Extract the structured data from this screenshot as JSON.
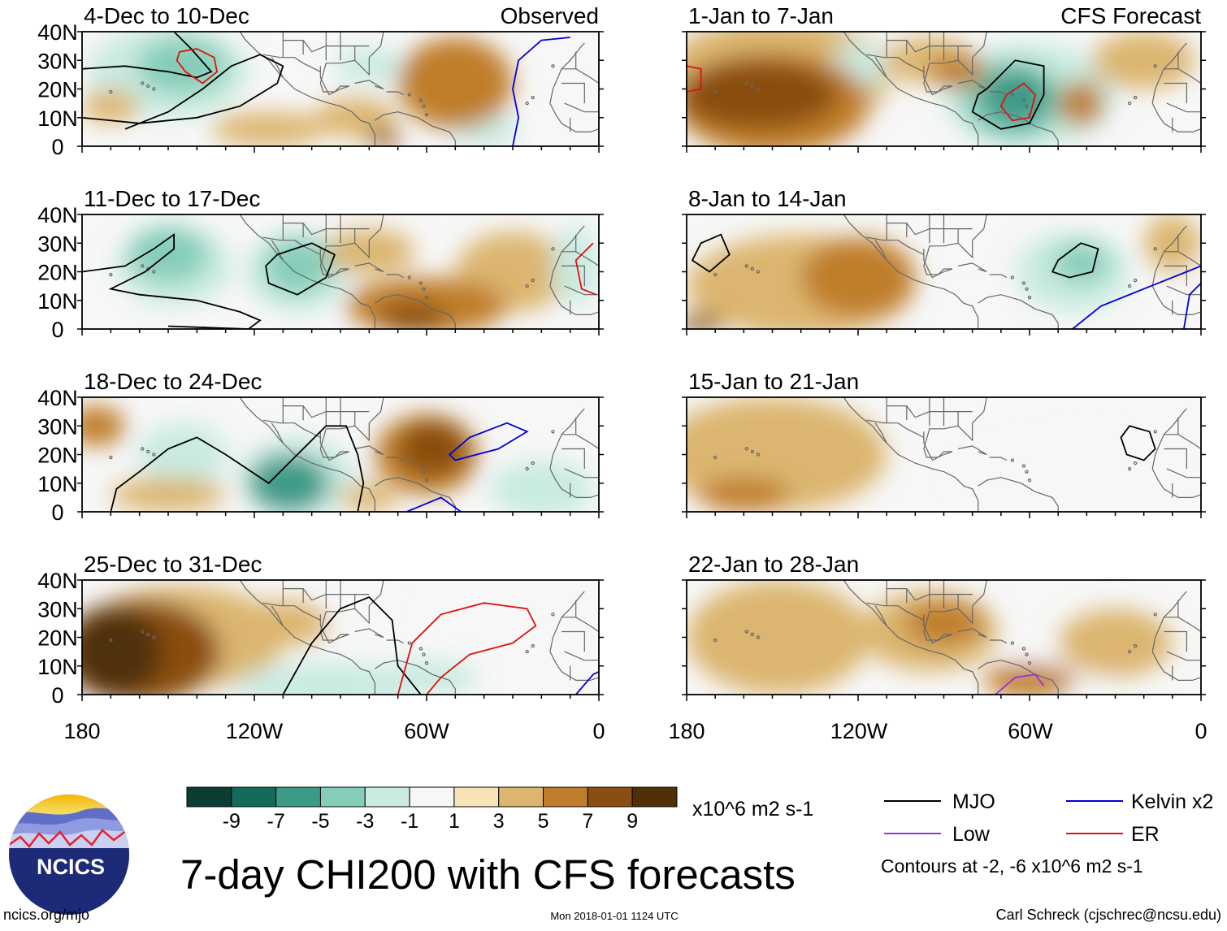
{
  "chart_data": {
    "type": "heatmap",
    "title": "7-day CHI200 with CFS forecasts",
    "variable": "CHI200",
    "units": "x10^6 m2 s-1",
    "x_ticks": [
      "180",
      "120W",
      "60W",
      "0"
    ],
    "y_ticks": [
      "40N",
      "30N",
      "20N",
      "10N",
      "0"
    ],
    "lon_range": [
      -180,
      0
    ],
    "lat_range": [
      0,
      40
    ],
    "colorbar": {
      "tick_labels": [
        "-9",
        "-7",
        "-5",
        "-3",
        "-1",
        "1",
        "3",
        "5",
        "7",
        "9"
      ],
      "colors": [
        "#0b3d33",
        "#136b5c",
        "#3c9a88",
        "#86cdb9",
        "#c9ebe1",
        "#f7f7f7",
        "#f6e3b6",
        "#dcb66f",
        "#c07e2c",
        "#8a4e11",
        "#4f3007"
      ]
    },
    "panels_observed": [
      {
        "period": "4-Dec to 10-Dec",
        "tag": "Observed"
      },
      {
        "period": "11-Dec to 17-Dec",
        "tag": ""
      },
      {
        "period": "18-Dec to 24-Dec",
        "tag": ""
      },
      {
        "period": "25-Dec to 31-Dec",
        "tag": ""
      }
    ],
    "panels_forecast": [
      {
        "period": "1-Jan to 7-Jan",
        "tag": "CFS Forecast"
      },
      {
        "period": "8-Jan to 14-Jan",
        "tag": ""
      },
      {
        "period": "15-Jan to 21-Jan",
        "tag": ""
      },
      {
        "period": "22-Jan to 28-Jan",
        "tag": ""
      }
    ],
    "legend": [
      {
        "label": "MJO",
        "color": "#000000"
      },
      {
        "label": "Kelvin x2",
        "color": "#0000d8"
      },
      {
        "label": "Low",
        "color": "#9b30e0"
      },
      {
        "label": "ER",
        "color": "#e01010"
      }
    ],
    "contour_note": "Contours at -2, -6 x10^6 m2 s-1"
  },
  "footer": {
    "logo_text": "NCICS",
    "url": "ncics.org/mjo",
    "timestamp": "Mon 2018-01-01 1124 UTC",
    "author": "Carl Schreck (cjschrec@ncsu.edu)"
  }
}
